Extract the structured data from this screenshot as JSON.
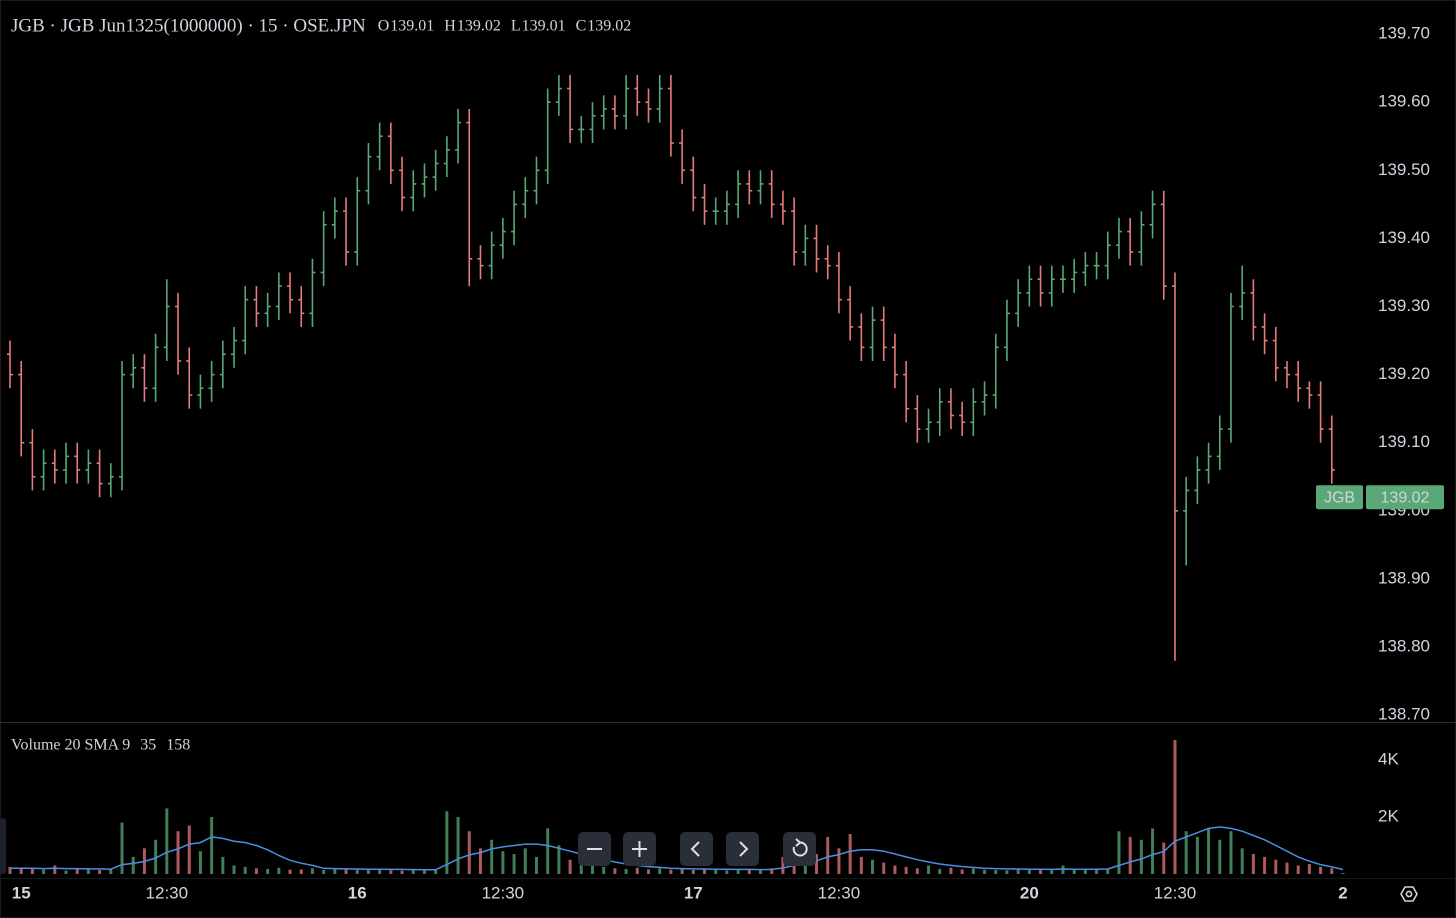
{
  "chart_data": {
    "type": "ohlc",
    "title": "JGB · JGB Jun1325(1000000) · 15 · OSE.JPN",
    "ohlc_labels": [
      "O",
      "H",
      "L",
      "C"
    ],
    "symbol": "JGB",
    "categories": [
      null,
      "15",
      null,
      null,
      null,
      null,
      null,
      null,
      null,
      null,
      null,
      null,
      null,
      null,
      "12:30",
      null,
      null,
      null,
      null,
      null,
      null,
      null,
      null,
      null,
      null,
      null,
      null,
      null,
      null,
      null,
      null,
      "16",
      null,
      null,
      null,
      null,
      null,
      null,
      null,
      null,
      null,
      null,
      null,
      null,
      "12:30",
      null,
      null,
      null,
      null,
      null,
      null,
      null,
      null,
      null,
      null,
      null,
      null,
      null,
      null,
      null,
      null,
      "17",
      null,
      null,
      null,
      null,
      null,
      null,
      null,
      null,
      null,
      null,
      null,
      null,
      "12:30",
      null,
      null,
      null,
      null,
      null,
      null,
      null,
      null,
      null,
      null,
      null,
      null,
      null,
      null,
      null,
      null,
      "20",
      null,
      null,
      null,
      null,
      null,
      null,
      null,
      null,
      null,
      null,
      null,
      null,
      "12:30",
      null,
      null,
      null,
      null,
      null,
      null,
      null,
      null,
      null,
      null,
      null,
      null,
      null,
      null,
      "2"
    ],
    "open": [
      139.23,
      139.2,
      139.1,
      139.05,
      139.07,
      139.06,
      139.08,
      139.06,
      139.07,
      139.04,
      139.05,
      139.2,
      139.21,
      139.18,
      139.24,
      139.3,
      139.22,
      139.17,
      139.18,
      139.2,
      139.23,
      139.25,
      139.31,
      139.29,
      139.3,
      139.33,
      139.31,
      139.29,
      139.35,
      139.42,
      139.44,
      139.38,
      139.47,
      139.52,
      139.55,
      139.5,
      139.46,
      139.48,
      139.49,
      139.51,
      139.53,
      139.57,
      139.37,
      139.36,
      139.39,
      139.41,
      139.45,
      139.47,
      139.5,
      139.6,
      139.62,
      139.56,
      139.56,
      139.58,
      139.59,
      139.58,
      139.62,
      139.6,
      139.59,
      139.62,
      139.54,
      139.5,
      139.46,
      139.44,
      139.44,
      139.45,
      139.48,
      139.47,
      139.48,
      139.45,
      139.44,
      139.38,
      139.4,
      139.37,
      139.36,
      139.31,
      139.27,
      139.24,
      139.28,
      139.24,
      139.2,
      139.15,
      139.12,
      139.13,
      139.16,
      139.14,
      139.13,
      139.16,
      139.17,
      139.24,
      139.29,
      139.32,
      139.34,
      139.32,
      139.34,
      139.34,
      139.35,
      139.36,
      139.36,
      139.39,
      139.41,
      139.38,
      139.42,
      139.45,
      139.33,
      139.0,
      139.03,
      139.06,
      139.08,
      139.12,
      139.3,
      139.32,
      139.27,
      139.25,
      139.21,
      139.2,
      139.18,
      139.17,
      139.12,
      139.01
    ],
    "high": [
      139.25,
      139.22,
      139.12,
      139.09,
      139.09,
      139.1,
      139.1,
      139.09,
      139.09,
      139.07,
      139.22,
      139.23,
      139.23,
      139.26,
      139.34,
      139.32,
      139.24,
      139.2,
      139.22,
      139.25,
      139.27,
      139.33,
      139.33,
      139.32,
      139.35,
      139.35,
      139.33,
      139.37,
      139.44,
      139.46,
      139.46,
      139.49,
      139.54,
      139.57,
      139.57,
      139.52,
      139.5,
      139.51,
      139.53,
      139.55,
      139.59,
      139.59,
      139.39,
      139.41,
      139.43,
      139.47,
      139.49,
      139.52,
      139.62,
      139.64,
      139.64,
      139.58,
      139.6,
      139.61,
      139.61,
      139.64,
      139.64,
      139.62,
      139.64,
      139.64,
      139.56,
      139.52,
      139.48,
      139.46,
      139.47,
      139.5,
      139.5,
      139.5,
      139.5,
      139.47,
      139.46,
      139.42,
      139.42,
      139.39,
      139.38,
      139.33,
      139.29,
      139.3,
      139.3,
      139.26,
      139.22,
      139.17,
      139.15,
      139.18,
      139.18,
      139.16,
      139.18,
      139.19,
      139.26,
      139.31,
      139.34,
      139.36,
      139.36,
      139.36,
      139.36,
      139.37,
      139.38,
      139.38,
      139.41,
      139.43,
      139.43,
      139.44,
      139.47,
      139.47,
      139.35,
      139.05,
      139.08,
      139.1,
      139.14,
      139.32,
      139.36,
      139.34,
      139.29,
      139.27,
      139.22,
      139.22,
      139.19,
      139.19,
      139.14,
      139.02
    ],
    "low": [
      139.18,
      139.08,
      139.03,
      139.03,
      139.04,
      139.04,
      139.04,
      139.04,
      139.02,
      139.02,
      139.03,
      139.18,
      139.16,
      139.16,
      139.22,
      139.2,
      139.15,
      139.15,
      139.16,
      139.18,
      139.21,
      139.23,
      139.27,
      139.27,
      139.28,
      139.29,
      139.27,
      139.27,
      139.33,
      139.4,
      139.36,
      139.36,
      139.45,
      139.5,
      139.48,
      139.44,
      139.44,
      139.46,
      139.47,
      139.49,
      139.51,
      139.33,
      139.34,
      139.34,
      139.37,
      139.39,
      139.43,
      139.45,
      139.48,
      139.58,
      139.54,
      139.54,
      139.54,
      139.56,
      139.56,
      139.56,
      139.58,
      139.57,
      139.57,
      139.52,
      139.48,
      139.44,
      139.42,
      139.42,
      139.42,
      139.43,
      139.45,
      139.45,
      139.43,
      139.42,
      139.36,
      139.36,
      139.35,
      139.34,
      139.29,
      139.25,
      139.22,
      139.22,
      139.22,
      139.18,
      139.13,
      139.1,
      139.1,
      139.11,
      139.12,
      139.11,
      139.11,
      139.14,
      139.15,
      139.22,
      139.27,
      139.3,
      139.3,
      139.3,
      139.32,
      139.32,
      139.33,
      139.34,
      139.34,
      139.37,
      139.36,
      139.36,
      139.4,
      139.31,
      138.78,
      138.92,
      139.01,
      139.04,
      139.06,
      139.1,
      139.28,
      139.25,
      139.23,
      139.19,
      139.18,
      139.16,
      139.15,
      139.1,
      139.04,
      139.01
    ],
    "close": [
      139.2,
      139.1,
      139.05,
      139.07,
      139.06,
      139.08,
      139.06,
      139.07,
      139.04,
      139.05,
      139.2,
      139.21,
      139.18,
      139.24,
      139.3,
      139.22,
      139.17,
      139.18,
      139.2,
      139.23,
      139.25,
      139.31,
      139.29,
      139.3,
      139.33,
      139.31,
      139.29,
      139.35,
      139.42,
      139.44,
      139.38,
      139.47,
      139.52,
      139.55,
      139.5,
      139.46,
      139.48,
      139.49,
      139.51,
      139.53,
      139.57,
      139.37,
      139.36,
      139.39,
      139.41,
      139.45,
      139.47,
      139.5,
      139.6,
      139.62,
      139.56,
      139.56,
      139.58,
      139.59,
      139.58,
      139.62,
      139.6,
      139.59,
      139.62,
      139.54,
      139.5,
      139.46,
      139.44,
      139.44,
      139.45,
      139.48,
      139.47,
      139.48,
      139.45,
      139.44,
      139.38,
      139.4,
      139.37,
      139.36,
      139.31,
      139.27,
      139.24,
      139.28,
      139.24,
      139.2,
      139.15,
      139.12,
      139.13,
      139.16,
      139.14,
      139.13,
      139.16,
      139.17,
      139.24,
      139.29,
      139.32,
      139.34,
      139.32,
      139.34,
      139.34,
      139.35,
      139.36,
      139.36,
      139.39,
      139.41,
      139.38,
      139.42,
      139.45,
      139.33,
      139.0,
      139.03,
      139.06,
      139.08,
      139.12,
      139.3,
      139.32,
      139.27,
      139.25,
      139.21,
      139.2,
      139.18,
      139.17,
      139.12,
      139.06,
      139.02
    ],
    "up_color": "#5aa877",
    "down_color": "#e57b7b",
    "ylim": [
      138.69,
      139.75
    ],
    "yticks": [
      {
        "value": 138.7,
        "label": "138.70"
      },
      {
        "value": 138.8,
        "label": "138.80"
      },
      {
        "value": 138.9,
        "label": "138.90"
      },
      {
        "value": 139.0,
        "label": "139.00"
      },
      {
        "value": 139.1,
        "label": "139.10"
      },
      {
        "value": 139.2,
        "label": "139.20"
      },
      {
        "value": 139.3,
        "label": "139.30"
      },
      {
        "value": 139.4,
        "label": "139.40"
      },
      {
        "value": 139.5,
        "label": "139.50"
      },
      {
        "value": 139.6,
        "label": "139.60"
      },
      {
        "value": 139.7,
        "label": "139.70"
      }
    ],
    "volume": {
      "title": "Volume 20 SMA 9",
      "values": [
        250,
        180,
        220,
        150,
        300,
        120,
        200,
        160,
        140,
        180,
        1800,
        600,
        900,
        1200,
        2300,
        1500,
        1700,
        800,
        2000,
        600,
        300,
        250,
        200,
        180,
        220,
        150,
        160,
        200,
        140,
        180,
        170,
        150,
        160,
        140,
        130,
        120,
        150,
        160,
        140,
        2200,
        2000,
        1500,
        900,
        1200,
        800,
        700,
        900,
        600,
        1600,
        1000,
        500,
        400,
        300,
        250,
        200,
        180,
        220,
        160,
        200,
        150,
        180,
        140,
        160,
        150,
        130,
        170,
        150,
        140,
        200,
        600,
        800,
        1000,
        700,
        1300,
        900,
        1400,
        600,
        500,
        400,
        300,
        250,
        200,
        300,
        180,
        220,
        160,
        200,
        150,
        140,
        130,
        180,
        150,
        160,
        140,
        300,
        150,
        170,
        160,
        200,
        1500,
        1300,
        1200,
        1600,
        1100,
        4700,
        1500,
        1300,
        1600,
        1200,
        1500,
        900,
        700,
        600,
        500,
        400,
        300,
        350,
        250,
        200,
        35
      ],
      "sma": {
        "color": "#4a8fe0",
        "values": [
          200,
          200,
          200,
          190,
          200,
          190,
          190,
          180,
          180,
          170,
          330,
          370,
          440,
          560,
          760,
          880,
          1050,
          1100,
          1300,
          1250,
          1150,
          1100,
          1000,
          850,
          650,
          480,
          380,
          300,
          200,
          190,
          180,
          175,
          170,
          165,
          160,
          160,
          155,
          150,
          150,
          330,
          530,
          670,
          750,
          880,
          950,
          1000,
          1050,
          1050,
          1000,
          900,
          800,
          700,
          600,
          500,
          420,
          350,
          300,
          260,
          230,
          200,
          190,
          180,
          175,
          170,
          165,
          160,
          160,
          155,
          160,
          210,
          300,
          390,
          460,
          600,
          680,
          800,
          850,
          850,
          800,
          700,
          600,
          500,
          420,
          350,
          300,
          260,
          230,
          200,
          190,
          180,
          175,
          170,
          165,
          160,
          175,
          170,
          170,
          170,
          175,
          300,
          420,
          530,
          680,
          790,
          1150,
          1300,
          1450,
          1600,
          1650,
          1600,
          1500,
          1350,
          1200,
          1000,
          800,
          600,
          450,
          330,
          250,
          158
        ]
      },
      "ylim": [
        0,
        5050
      ],
      "yticks": [
        {
          "value": 2000,
          "label": "2K"
        },
        {
          "value": 4000,
          "label": "4K"
        }
      ]
    }
  }
}
